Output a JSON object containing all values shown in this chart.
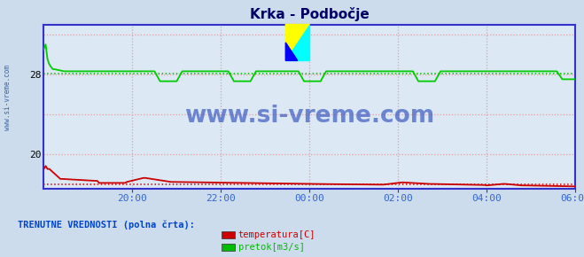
{
  "title": "Krka - Podbočje",
  "bg_color": "#ccdcec",
  "plot_bg_color": "#dce8f4",
  "grid_color": "#ee9999",
  "axis_color": "#3333cc",
  "ylim": [
    16.5,
    33.0
  ],
  "yticks": [
    20,
    28
  ],
  "xlim": [
    0,
    288
  ],
  "xtick_positions": [
    48,
    96,
    144,
    192,
    240,
    288
  ],
  "xtick_labels": [
    "20:00",
    "22:00",
    "00:00",
    "02:00",
    "04:00",
    "06:00"
  ],
  "watermark": "www.si-vreme.com",
  "watermark_color": "#2244bb",
  "ylabel_text": "www.si-vreme.com",
  "ylabel_color": "#3366aa",
  "legend_title": "TRENUTNE VREDNOSTI (polna črta):",
  "legend_title_color": "#0044cc",
  "legend_items": [
    "temperatura[C]",
    "pretok[m3/s]"
  ],
  "legend_colors": [
    "#cc0000",
    "#00bb00"
  ],
  "green_base": 28.3,
  "red_base": 17.1,
  "dotted_green": 28.05,
  "dotted_red": 17.0
}
